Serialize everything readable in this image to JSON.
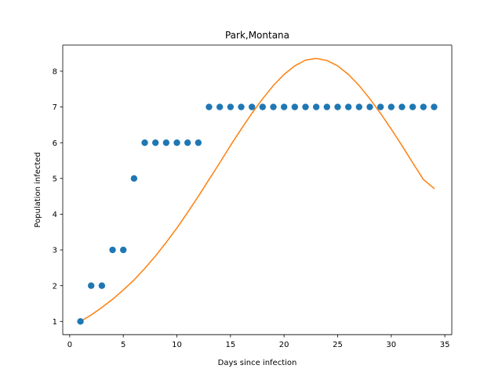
{
  "chart_data": {
    "type": "scatter",
    "title": "Park,Montana",
    "xlabel": "Days since infection",
    "ylabel": "Population infected",
    "xlim": [
      -0.65,
      35.65
    ],
    "ylim": [
      0.63,
      8.73
    ],
    "xticks": [
      0,
      5,
      10,
      15,
      20,
      25,
      30,
      35
    ],
    "yticks": [
      1,
      2,
      3,
      4,
      5,
      6,
      7,
      8
    ],
    "grid": false,
    "series": [
      {
        "kind": "scatter",
        "color": "#1f77b4",
        "x": [
          1,
          2,
          3,
          4,
          5,
          6,
          7,
          8,
          9,
          10,
          11,
          12,
          13,
          14,
          15,
          16,
          17,
          18,
          19,
          20,
          21,
          22,
          23,
          24,
          25,
          26,
          27,
          28,
          29,
          30,
          31,
          32,
          33,
          34
        ],
        "y": [
          1,
          2,
          2,
          3,
          3,
          5,
          6,
          6,
          6,
          6,
          6,
          6,
          7,
          7,
          7,
          7,
          7,
          7,
          7,
          7,
          7,
          7,
          7,
          7,
          7,
          7,
          7,
          7,
          7,
          7,
          7,
          7,
          7,
          7
        ]
      },
      {
        "kind": "line",
        "color": "#ff7f0e",
        "x": [
          1,
          2,
          3,
          4,
          5,
          6,
          7,
          8,
          9,
          10,
          11,
          12,
          13,
          14,
          15,
          16,
          17,
          18,
          19,
          20,
          21,
          22,
          23,
          24,
          25,
          26,
          27,
          28,
          29,
          30,
          31,
          32,
          33,
          34
        ],
        "y": [
          1.0,
          1.18,
          1.39,
          1.62,
          1.88,
          2.16,
          2.48,
          2.83,
          3.21,
          3.61,
          4.05,
          4.5,
          4.97,
          5.44,
          5.92,
          6.38,
          6.82,
          7.23,
          7.6,
          7.91,
          8.15,
          8.31,
          8.36,
          8.3,
          8.15,
          7.91,
          7.6,
          7.23,
          6.82,
          6.38,
          5.92,
          5.44,
          4.97,
          4.72
        ]
      }
    ]
  }
}
